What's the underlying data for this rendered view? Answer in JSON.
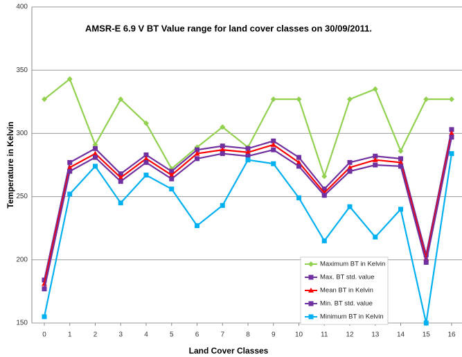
{
  "chart_data": {
    "type": "line",
    "title": "AMSR-E 6.9 V BT Value range for land cover classes on 30/09/2011.",
    "x_label": "Land Cover Classes",
    "y_label": "Temperature in Kelvin",
    "categories": [
      "0",
      "1",
      "2",
      "3",
      "4",
      "5",
      "6",
      "7",
      "8",
      "9",
      "10",
      "11",
      "12",
      "13",
      "14",
      "15",
      "16"
    ],
    "ylim": [
      150,
      400
    ],
    "yticks": [
      150,
      200,
      250,
      300,
      350,
      400
    ],
    "grid": true,
    "legend": "lower right",
    "series": [
      {
        "name": "Maximum BT in Kelvin",
        "color": "#92d050",
        "marker": "diamond",
        "values": [
          327,
          343,
          291,
          327,
          308,
          272,
          289,
          305,
          289,
          327,
          327,
          266,
          327,
          335,
          286,
          327,
          327
        ]
      },
      {
        "name": "Max. BT std. value",
        "color": "#7030a0",
        "marker": "square",
        "values": [
          184,
          277,
          288,
          268,
          283,
          270,
          287,
          290,
          288,
          294,
          281,
          256,
          277,
          282,
          280,
          204,
          303
        ]
      },
      {
        "name": "Mean BT in Kelvin",
        "color": "#ff0000",
        "marker": "triangle",
        "values": [
          181,
          273,
          284,
          265,
          280,
          267,
          284,
          287,
          285,
          291,
          277,
          253,
          273,
          279,
          277,
          201,
          300
        ]
      },
      {
        "name": "Min. BT std. value",
        "color": "#7030a0",
        "marker": "square",
        "values": [
          177,
          270,
          281,
          262,
          277,
          264,
          280,
          284,
          282,
          287,
          274,
          251,
          270,
          275,
          274,
          198,
          297
        ]
      },
      {
        "name": "Minimum BT in Kelvin",
        "color": "#00b0f0",
        "marker": "square",
        "values": [
          155,
          252,
          274,
          245,
          267,
          256,
          227,
          243,
          279,
          276,
          249,
          215,
          242,
          218,
          240,
          150,
          284
        ]
      }
    ]
  }
}
